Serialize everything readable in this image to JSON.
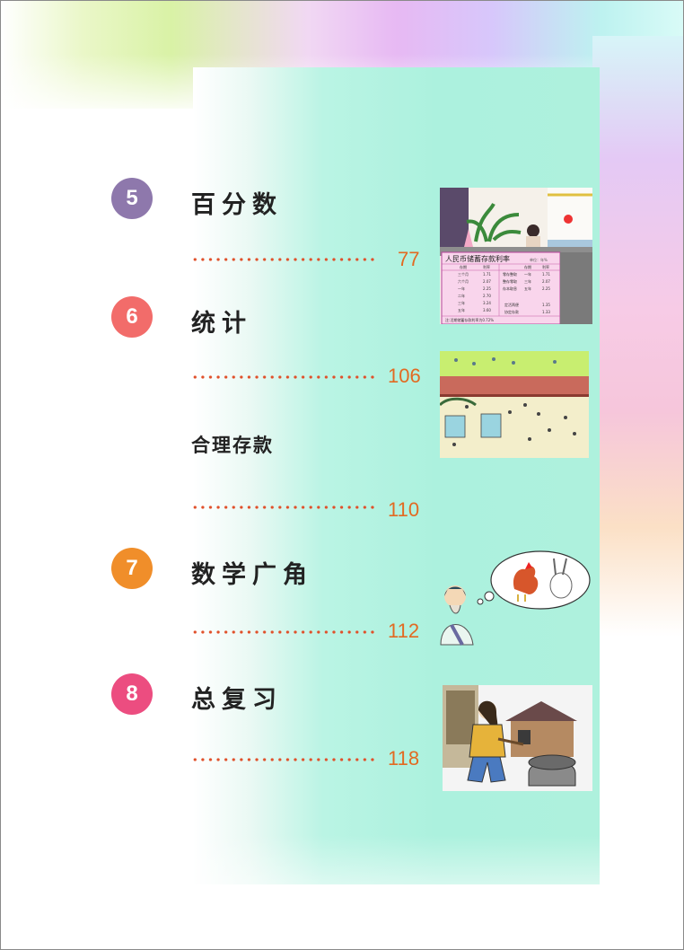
{
  "entries": [
    {
      "badge": "5",
      "title": "百分数",
      "page": "77",
      "badge_color": "#8e78ac"
    },
    {
      "badge": "6",
      "title": "统计",
      "page": "106",
      "badge_color": "#f26c6a"
    },
    {
      "title": "合理存款",
      "page": "110"
    },
    {
      "badge": "7",
      "title": "数学广角",
      "page": "112",
      "badge_color": "#f08e2a"
    },
    {
      "badge": "8",
      "title": "总复习",
      "page": "118",
      "badge_color": "#ec4d80"
    }
  ],
  "bank_sign": {
    "title": "人民币储蓄存款利率",
    "unit": "单位：年%",
    "col_headers": [
      "存期",
      "利率",
      "存期",
      "利率"
    ],
    "left_terms": [
      "三个月",
      "六个月",
      "一年",
      "二年",
      "三年",
      "五年"
    ],
    "left_rates": [
      "1.71",
      "2.07",
      "2.25",
      "2.70",
      "3.24",
      "3.60"
    ],
    "right_groups": [
      "零存整取",
      "整存零取",
      "存本取息"
    ],
    "right_terms": [
      "一年",
      "三年",
      "五年"
    ],
    "right_rates": [
      "1.71",
      "2.07",
      "2.25"
    ],
    "extra_rows": [
      [
        "定活两便",
        "1.35"
      ],
      [
        "协定存款",
        "1.33"
      ]
    ],
    "footer": "注:活期储蓄存款利率为0.72%"
  },
  "colors": {
    "accent_orange": "#e26a22",
    "dots": "#e0502a",
    "panel": "#aef1dd"
  }
}
